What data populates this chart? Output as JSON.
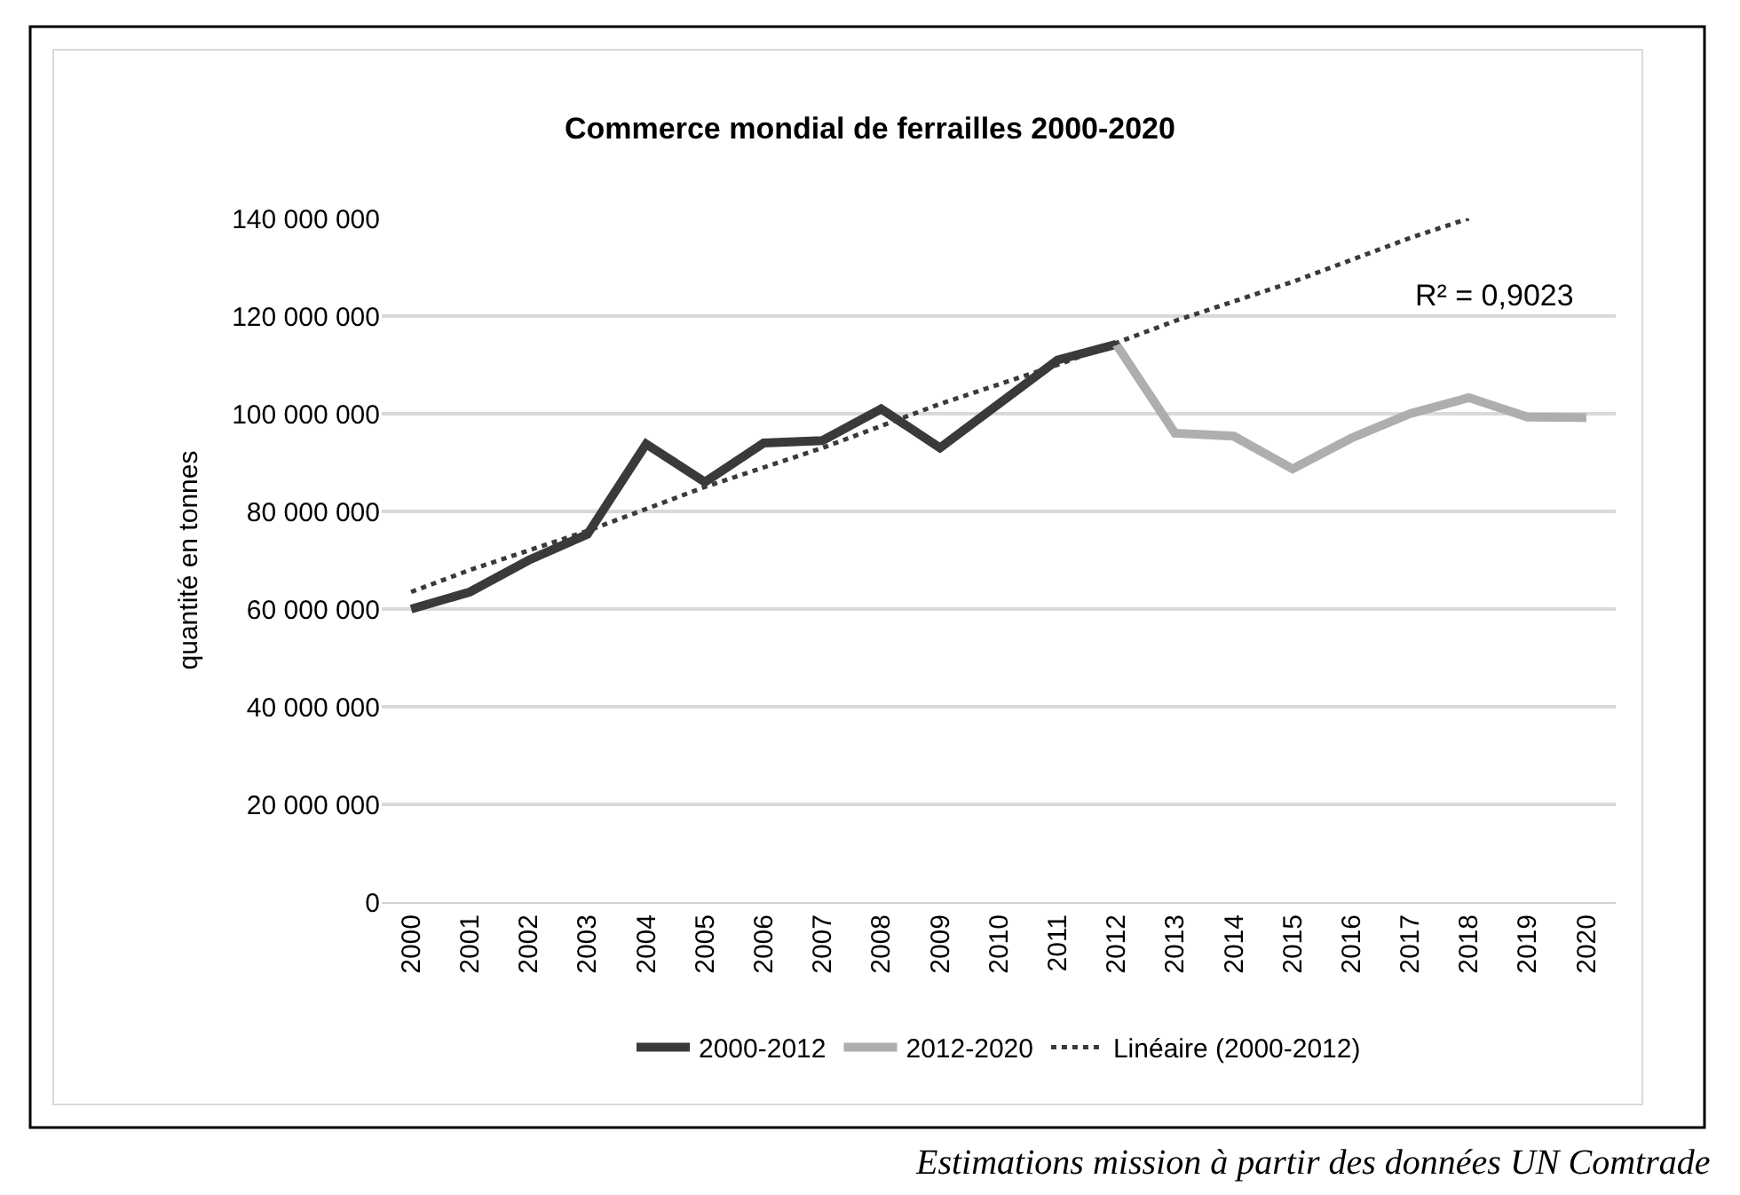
{
  "chart_data": {
    "type": "line",
    "title": "Commerce mondial de ferrailles 2000-2020",
    "ylabel": "quantité en tonnes",
    "categories": [
      "2000",
      "2001",
      "2002",
      "2003",
      "2004",
      "2005",
      "2006",
      "2007",
      "2008",
      "2009",
      "2010",
      "2011",
      "2012",
      "2013",
      "2014",
      "2015",
      "2016",
      "2017",
      "2018",
      "2019",
      "2020"
    ],
    "series": [
      {
        "name": "2000-2012",
        "color": "#3a3a3a",
        "line_style": "solid",
        "values": [
          60000000,
          63500000,
          70000000,
          75300000,
          93800000,
          86000000,
          94000000,
          94500000,
          101000000,
          93000000,
          102000000,
          111000000,
          114200000,
          null,
          null,
          null,
          null,
          null,
          null,
          null,
          null
        ]
      },
      {
        "name": "2012-2020",
        "color": "#b0adad",
        "line_style": "solid",
        "values": [
          null,
          null,
          null,
          null,
          null,
          null,
          null,
          null,
          null,
          null,
          null,
          null,
          114200000,
          96000000,
          95400000,
          88700000,
          95000000,
          100000000,
          103300000,
          99300000,
          99200000
        ]
      },
      {
        "name": "Linéaire (2000-2012)",
        "color": "#3a3a3a",
        "line_style": "dotted",
        "values": [
          63500000,
          68000000,
          72000000,
          76000000,
          80500000,
          85000000,
          89000000,
          93000000,
          97500000,
          102000000,
          106000000,
          110000000,
          114500000,
          119000000,
          123000000,
          127000000,
          131500000,
          136000000,
          140000000,
          null,
          null
        ]
      }
    ],
    "ylim": [
      0,
      140000000
    ],
    "yticks": [
      {
        "value": 0,
        "label": "0"
      },
      {
        "value": 20000000,
        "label": "20 000 000"
      },
      {
        "value": 40000000,
        "label": "40 000 000"
      },
      {
        "value": 60000000,
        "label": "60 000 000"
      },
      {
        "value": 80000000,
        "label": "80 000 000"
      },
      {
        "value": 100000000,
        "label": "100 000 000"
      },
      {
        "value": 120000000,
        "label": "120 000 000"
      },
      {
        "value": 140000000,
        "label": "140 000 000"
      }
    ],
    "grid": "y",
    "legend": "bottom",
    "marker": "none",
    "annotations": [
      "R² = 0,9023",
      "Estimations mission à partir des données UN Comtrade"
    ]
  }
}
